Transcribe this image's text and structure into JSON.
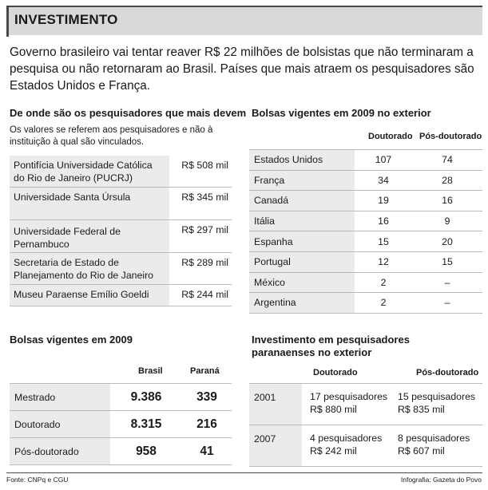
{
  "header": {
    "title": "INVESTIMENTO"
  },
  "lead": "Governo brasileiro vai tentar reaver R$ 22 milhões de bolsistas que não terminaram a pesquisa ou não retornaram ao Brasil. Países que mais atraem os pesquisadores são Estados Unidos e França.",
  "researchers": {
    "title": "De onde são os pesquisadores que mais devem",
    "note": "Os valores se referem aos pesquisadores e não à instituição à qual são vinculados.",
    "rows": [
      {
        "name": "Pontifícia Universidade Católica do Rio de Janeiro (PUCRJ)",
        "value": "R$ 508 mil"
      },
      {
        "name": "Universidade Santa Úrsula",
        "value": "R$ 345 mil"
      },
      {
        "name": "Universidade Federal de Pernambuco",
        "value": "R$ 297 mil"
      },
      {
        "name": "Secretaria de Estado de Planejamento do Rio de Janeiro",
        "value": "R$ 289 mil"
      },
      {
        "name": "Museu Paraense Emílio Goeldi",
        "value": "R$ 244 mil"
      }
    ]
  },
  "exterior": {
    "title": "Bolsas vigentes em 2009 no exterior",
    "headers": [
      "Doutorado",
      "Pós-doutorado"
    ],
    "rows": [
      {
        "country": "Estados Unidos",
        "doutorado": "107",
        "pos": "74"
      },
      {
        "country": "França",
        "doutorado": "34",
        "pos": "28"
      },
      {
        "country": "Canadá",
        "doutorado": "19",
        "pos": "16"
      },
      {
        "country": "Itália",
        "doutorado": "16",
        "pos": "9"
      },
      {
        "country": "Espanha",
        "doutorado": "15",
        "pos": "20"
      },
      {
        "country": "Portugal",
        "doutorado": "12",
        "pos": "15"
      },
      {
        "country": "México",
        "doutorado": "2",
        "pos": "–"
      },
      {
        "country": "Argentina",
        "doutorado": "2",
        "pos": "–"
      }
    ]
  },
  "bolsas2009": {
    "title": "Bolsas vigentes em 2009",
    "headers": [
      "Brasil",
      "Paraná"
    ],
    "rows": [
      {
        "level": "Mestrado",
        "brasil": "9.386",
        "parana": "339"
      },
      {
        "level": "Doutorado",
        "brasil": "8.315",
        "parana": "216"
      },
      {
        "level": "Pós-doutorado",
        "brasil": "958",
        "parana": "41"
      }
    ]
  },
  "investimento": {
    "title_line1": "Investimento em pesquisadores",
    "title_line2": "paranaenses no exterior",
    "headers": [
      "Doutorado",
      "Pós-doutorado"
    ],
    "rows": [
      {
        "year": "2001",
        "dout_count": "17 pesquisadores",
        "dout_value": "R$ 880 mil",
        "pos_count": "15 pesquisadores",
        "pos_value": "R$ 835 mil"
      },
      {
        "year": "2007",
        "dout_count": "4 pesquisadores",
        "dout_value": "R$ 242 mil",
        "pos_count": "8 pesquisadores",
        "pos_value": "R$ 607 mil"
      }
    ]
  },
  "footer": {
    "source": "Fonte: CNPq e CGU",
    "credit": "Infografia: Gazeta do Povo"
  }
}
